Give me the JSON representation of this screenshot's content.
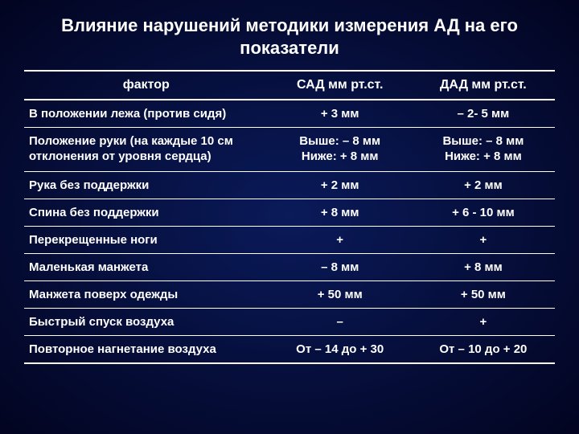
{
  "title": "Влияние нарушений методики измерения АД на его показатели",
  "columns": {
    "factor": "фактор",
    "sad": "САД мм рт.ст.",
    "dad": "ДАД мм рт.ст."
  },
  "rows": [
    {
      "factor": "В положении лежа (против сидя)",
      "sad": "+ 3 мм",
      "dad": "– 2- 5 мм"
    },
    {
      "factor": "Положение руки (на каждые 10 см отклонения от уровня сердца)",
      "sad": "Выше: – 8 мм\nНиже: + 8 мм",
      "dad": "Выше: – 8 мм\nНиже: + 8 мм"
    },
    {
      "factor": "Рука без поддержки",
      "sad": "+ 2 мм",
      "dad": "+ 2 мм"
    },
    {
      "factor": "Спина без поддержки",
      "sad": "+ 8 мм",
      "dad": "+ 6 - 10 мм"
    },
    {
      "factor": "Перекрещенные ноги",
      "sad": "+",
      "dad": "+"
    },
    {
      "factor": "Маленькая манжета",
      "sad": "– 8 мм",
      "dad": "+ 8 мм"
    },
    {
      "factor": "Манжета поверх одежды",
      "sad": "+ 50 мм",
      "dad": "+ 50 мм"
    },
    {
      "factor": "Быстрый спуск воздуха",
      "sad": "–",
      "dad": "+"
    },
    {
      "factor": "Повторное нагнетание воздуха",
      "sad": "От – 14 до + 30",
      "dad": "От – 10 до + 20"
    }
  ],
  "style": {
    "background_gradient": [
      "#0a1a5a",
      "#020420"
    ],
    "text_color": "#ffffff",
    "rule_color": "#ffffff",
    "title_fontsize": 22,
    "header_fontsize": 16,
    "cell_fontsize": 15,
    "font_weight": "bold",
    "col_widths_pct": [
      46,
      27,
      27
    ]
  }
}
